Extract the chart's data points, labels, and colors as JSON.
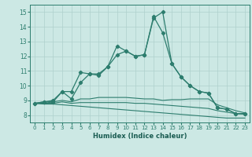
{
  "x": [
    0,
    1,
    2,
    3,
    4,
    5,
    6,
    7,
    8,
    9,
    10,
    11,
    12,
    13,
    14,
    15,
    16,
    17,
    18,
    19,
    20,
    21,
    22,
    23
  ],
  "series1": [
    8.8,
    8.9,
    9.0,
    9.6,
    9.6,
    10.9,
    10.8,
    10.8,
    11.3,
    12.7,
    12.35,
    12.0,
    12.1,
    14.6,
    15.0,
    11.5,
    10.6,
    10.0,
    9.6,
    9.5,
    8.5,
    8.4,
    8.1,
    8.1
  ],
  "series2": [
    8.8,
    8.9,
    8.9,
    9.6,
    9.1,
    10.2,
    10.8,
    10.7,
    11.3,
    12.1,
    12.35,
    12.0,
    12.1,
    14.7,
    13.6,
    11.5,
    10.6,
    10.0,
    9.6,
    9.5,
    8.5,
    8.4,
    8.1,
    8.1
  ],
  "series3": [
    8.8,
    8.8,
    8.9,
    9.0,
    8.9,
    9.1,
    9.1,
    9.2,
    9.2,
    9.2,
    9.2,
    9.15,
    9.1,
    9.1,
    9.0,
    9.05,
    9.05,
    9.1,
    9.1,
    9.1,
    8.7,
    8.5,
    8.3,
    8.15
  ],
  "series4": [
    8.8,
    8.8,
    8.8,
    8.9,
    8.8,
    8.85,
    8.85,
    8.85,
    8.85,
    8.85,
    8.85,
    8.8,
    8.8,
    8.75,
    8.7,
    8.65,
    8.6,
    8.55,
    8.5,
    8.45,
    8.3,
    8.2,
    8.1,
    8.05
  ],
  "series5": [
    8.8,
    8.75,
    8.75,
    8.7,
    8.65,
    8.6,
    8.55,
    8.5,
    8.45,
    8.4,
    8.35,
    8.3,
    8.25,
    8.2,
    8.15,
    8.1,
    8.05,
    8.0,
    7.95,
    7.9,
    7.85,
    7.8,
    7.8,
    7.8
  ],
  "xlabel": "Humidex (Indice chaleur)",
  "ylim": [
    7.5,
    15.5
  ],
  "xlim": [
    -0.5,
    23.5
  ],
  "yticks": [
    8,
    9,
    10,
    11,
    12,
    13,
    14,
    15
  ],
  "xticks": [
    0,
    1,
    2,
    3,
    4,
    5,
    6,
    7,
    8,
    9,
    10,
    11,
    12,
    13,
    14,
    15,
    16,
    17,
    18,
    19,
    20,
    21,
    22,
    23
  ],
  "line_color": "#2d7d6e",
  "bg_color": "#cce8e4",
  "grid_color": "#aed0cc",
  "tick_color": "#2d7d6e",
  "label_color": "#1a5c52"
}
